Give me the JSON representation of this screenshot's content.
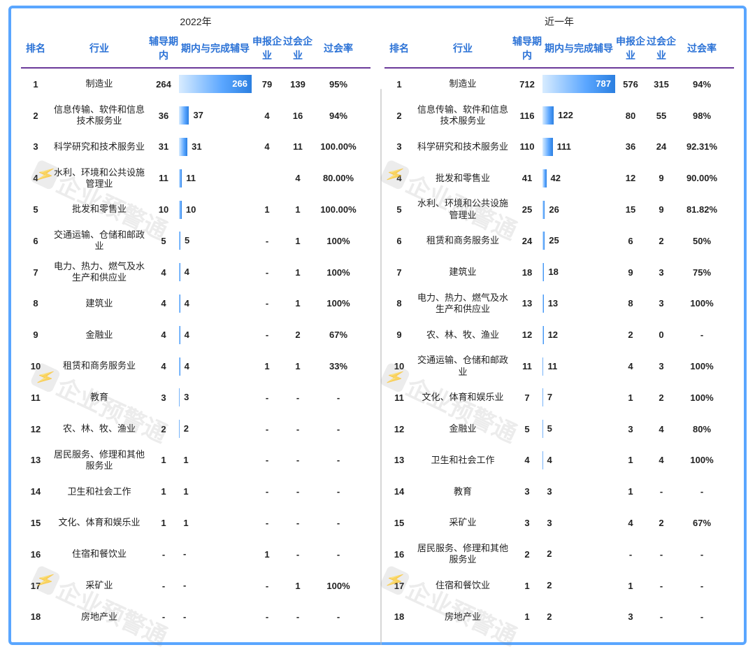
{
  "report": {
    "frame_color": "#5aa6ff",
    "header_underline_color": "#6b3a9a",
    "header_text_color": "#2b72d6",
    "background_color": "#ffffff",
    "font_family": "Microsoft YaHei",
    "row_text_color": "#222222",
    "panels": [
      {
        "title": "2022年",
        "bar_max": 266,
        "headers": {
          "rank": "排名",
          "industry": "行业",
          "col3": "辅导期内",
          "bar": "期内与完成辅导",
          "col5": "申报企业",
          "col6": "过会企业",
          "rate": "过会率"
        },
        "rows": [
          {
            "rank": "1",
            "industry": "制造业",
            "v3": "264",
            "bar": 266,
            "bar_label": "266",
            "v5": "79",
            "v6": "139",
            "rate": "95%"
          },
          {
            "rank": "2",
            "industry": "信息传输、软件和信息技术服务业",
            "v3": "36",
            "bar": 37,
            "bar_label": "37",
            "v5": "4",
            "v6": "16",
            "rate": "94%"
          },
          {
            "rank": "3",
            "industry": "科学研究和技术服务业",
            "v3": "31",
            "bar": 31,
            "bar_label": "31",
            "v5": "4",
            "v6": "11",
            "rate": "100.00%"
          },
          {
            "rank": "4",
            "industry": "水利、环境和公共设施管理业",
            "v3": "11",
            "bar": 11,
            "bar_label": "11",
            "v5": "",
            "v6": "4",
            "rate": "80.00%"
          },
          {
            "rank": "5",
            "industry": "批发和零售业",
            "v3": "10",
            "bar": 10,
            "bar_label": "10",
            "v5": "1",
            "v6": "1",
            "rate": "100.00%"
          },
          {
            "rank": "6",
            "industry": "交通运输、仓储和邮政业",
            "v3": "5",
            "bar": 5,
            "bar_label": "5",
            "v5": "-",
            "v6": "1",
            "rate": "100%"
          },
          {
            "rank": "7",
            "industry": "电力、热力、燃气及水生产和供应业",
            "v3": "4",
            "bar": 4,
            "bar_label": "4",
            "v5": "-",
            "v6": "1",
            "rate": "100%"
          },
          {
            "rank": "8",
            "industry": "建筑业",
            "v3": "4",
            "bar": 4,
            "bar_label": "4",
            "v5": "-",
            "v6": "1",
            "rate": "100%"
          },
          {
            "rank": "9",
            "industry": "金融业",
            "v3": "4",
            "bar": 4,
            "bar_label": "4",
            "v5": "-",
            "v6": "2",
            "rate": "67%"
          },
          {
            "rank": "10",
            "industry": "租赁和商务服务业",
            "v3": "4",
            "bar": 4,
            "bar_label": "4",
            "v5": "1",
            "v6": "1",
            "rate": "33%"
          },
          {
            "rank": "11",
            "industry": "教育",
            "v3": "3",
            "bar": 3,
            "bar_label": "3",
            "v5": "-",
            "v6": "-",
            "rate": "-"
          },
          {
            "rank": "12",
            "industry": "农、林、牧、渔业",
            "v3": "2",
            "bar": 2,
            "bar_label": "2",
            "v5": "-",
            "v6": "-",
            "rate": "-"
          },
          {
            "rank": "13",
            "industry": "居民服务、修理和其他服务业",
            "v3": "1",
            "bar": 1,
            "bar_label": "1",
            "v5": "-",
            "v6": "-",
            "rate": "-"
          },
          {
            "rank": "14",
            "industry": "卫生和社会工作",
            "v3": "1",
            "bar": 1,
            "bar_label": "1",
            "v5": "-",
            "v6": "-",
            "rate": "-"
          },
          {
            "rank": "15",
            "industry": "文化、体育和娱乐业",
            "v3": "1",
            "bar": 1,
            "bar_label": "1",
            "v5": "-",
            "v6": "-",
            "rate": "-"
          },
          {
            "rank": "16",
            "industry": "住宿和餐饮业",
            "v3": "-",
            "bar": 0,
            "bar_label": "-",
            "v5": "1",
            "v6": "-",
            "rate": "-"
          },
          {
            "rank": "17",
            "industry": "采矿业",
            "v3": "-",
            "bar": 0,
            "bar_label": "-",
            "v5": "-",
            "v6": "1",
            "rate": "100%"
          },
          {
            "rank": "18",
            "industry": "房地产业",
            "v3": "-",
            "bar": 0,
            "bar_label": "-",
            "v5": "-",
            "v6": "-",
            "rate": "-"
          }
        ]
      },
      {
        "title": "近一年",
        "bar_max": 787,
        "headers": {
          "rank": "排名",
          "industry": "行业",
          "col3": "辅导期内",
          "bar": "期内与完成辅导",
          "col5": "申报企业",
          "col6": "过会企业",
          "rate": "过会率"
        },
        "rows": [
          {
            "rank": "1",
            "industry": "制造业",
            "v3": "712",
            "bar": 787,
            "bar_label": "787",
            "v5": "576",
            "v6": "315",
            "rate": "94%"
          },
          {
            "rank": "2",
            "industry": "信息传输、软件和信息技术服务业",
            "v3": "116",
            "bar": 122,
            "bar_label": "122",
            "v5": "80",
            "v6": "55",
            "rate": "98%"
          },
          {
            "rank": "3",
            "industry": "科学研究和技术服务业",
            "v3": "110",
            "bar": 111,
            "bar_label": "111",
            "v5": "36",
            "v6": "24",
            "rate": "92.31%"
          },
          {
            "rank": "4",
            "industry": "批发和零售业",
            "v3": "41",
            "bar": 42,
            "bar_label": "42",
            "v5": "12",
            "v6": "9",
            "rate": "90.00%"
          },
          {
            "rank": "5",
            "industry": "水利、环境和公共设施管理业",
            "v3": "25",
            "bar": 26,
            "bar_label": "26",
            "v5": "15",
            "v6": "9",
            "rate": "81.82%"
          },
          {
            "rank": "6",
            "industry": "租赁和商务服务业",
            "v3": "24",
            "bar": 25,
            "bar_label": "25",
            "v5": "6",
            "v6": "2",
            "rate": "50%"
          },
          {
            "rank": "7",
            "industry": "建筑业",
            "v3": "18",
            "bar": 18,
            "bar_label": "18",
            "v5": "9",
            "v6": "3",
            "rate": "75%"
          },
          {
            "rank": "8",
            "industry": "电力、热力、燃气及水生产和供应业",
            "v3": "13",
            "bar": 13,
            "bar_label": "13",
            "v5": "8",
            "v6": "3",
            "rate": "100%"
          },
          {
            "rank": "9",
            "industry": "农、林、牧、渔业",
            "v3": "12",
            "bar": 12,
            "bar_label": "12",
            "v5": "2",
            "v6": "0",
            "rate": "-"
          },
          {
            "rank": "10",
            "industry": "交通运输、仓储和邮政业",
            "v3": "11",
            "bar": 11,
            "bar_label": "11",
            "v5": "4",
            "v6": "3",
            "rate": "100%"
          },
          {
            "rank": "11",
            "industry": "文化、体育和娱乐业",
            "v3": "7",
            "bar": 7,
            "bar_label": "7",
            "v5": "1",
            "v6": "2",
            "rate": "100%"
          },
          {
            "rank": "12",
            "industry": "金融业",
            "v3": "5",
            "bar": 5,
            "bar_label": "5",
            "v5": "3",
            "v6": "4",
            "rate": "80%"
          },
          {
            "rank": "13",
            "industry": "卫生和社会工作",
            "v3": "4",
            "bar": 4,
            "bar_label": "4",
            "v5": "1",
            "v6": "4",
            "rate": "100%"
          },
          {
            "rank": "14",
            "industry": "教育",
            "v3": "3",
            "bar": 3,
            "bar_label": "3",
            "v5": "1",
            "v6": "-",
            "rate": "-"
          },
          {
            "rank": "15",
            "industry": "采矿业",
            "v3": "3",
            "bar": 3,
            "bar_label": "3",
            "v5": "4",
            "v6": "2",
            "rate": "67%"
          },
          {
            "rank": "16",
            "industry": "居民服务、修理和其他服务业",
            "v3": "2",
            "bar": 2,
            "bar_label": "2",
            "v5": "-",
            "v6": "-",
            "rate": "-"
          },
          {
            "rank": "17",
            "industry": "住宿和餐饮业",
            "v3": "1",
            "bar": 2,
            "bar_label": "2",
            "v5": "1",
            "v6": "-",
            "rate": "-"
          },
          {
            "rank": "18",
            "industry": "房地产业",
            "v3": "1",
            "bar": 2,
            "bar_label": "2",
            "v5": "3",
            "v6": "-",
            "rate": "-"
          }
        ]
      }
    ],
    "bar_gradient": {
      "from": "#d8ecff",
      "mid": "#5aa6ff",
      "to": "#2b7fe0"
    },
    "watermark": {
      "text": "企业预警通",
      "color": "rgba(120,120,120,0.14)",
      "fontsize": 34
    }
  }
}
